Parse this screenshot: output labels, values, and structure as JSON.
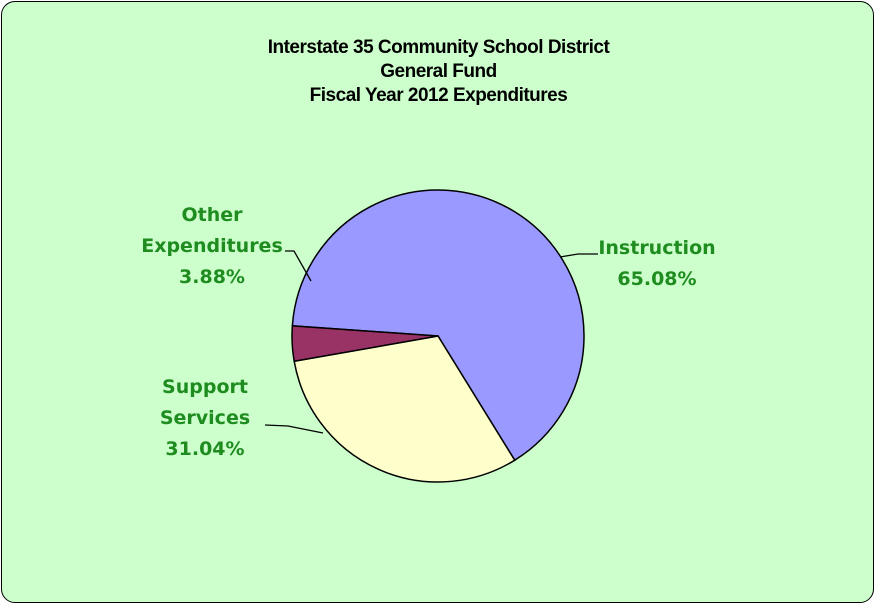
{
  "chart_data": {
    "type": "pie",
    "title": [
      "Interstate 35 Community School District",
      "General Fund",
      "Fiscal Year 2012 Expenditures"
    ],
    "slices": [
      {
        "label": [
          "Instruction"
        ],
        "percent_label": "65.08%",
        "value": 65.08,
        "color": "#9999ff"
      },
      {
        "label": [
          "Support",
          "Services"
        ],
        "percent_label": "31.04%",
        "value": 31.04,
        "color": "#ffffcc"
      },
      {
        "label": [
          "Other",
          "Expenditures"
        ],
        "percent_label": "3.88%",
        "value": 3.88,
        "color": "#993366"
      }
    ],
    "label_color": "#1f8c1f",
    "background_color": "#ccffcc"
  }
}
